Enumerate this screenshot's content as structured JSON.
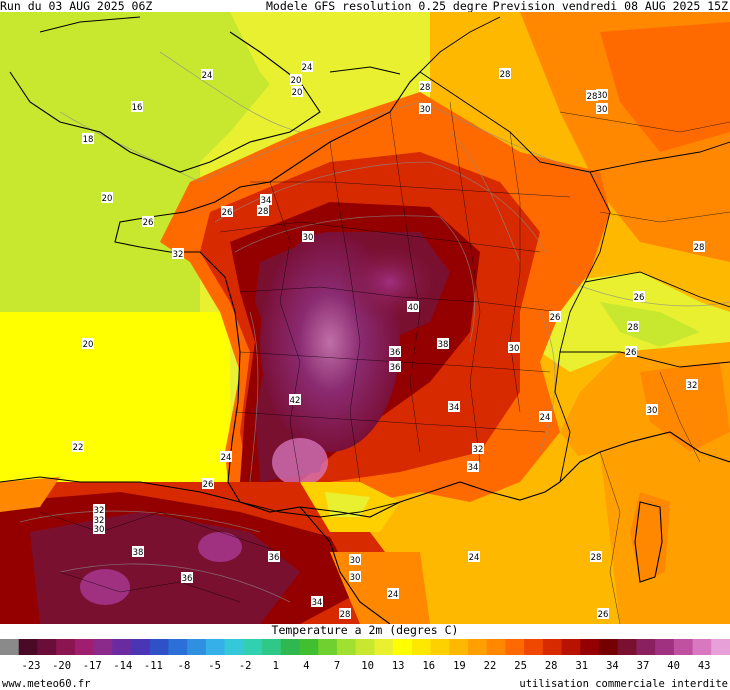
{
  "header": {
    "run": "Run du 03 AUG 2025 06Z",
    "model": "Modele GFS resolution 0.25 degre",
    "forecast": "Prevision vendredi 08 AUG 2025 15Z"
  },
  "legend": {
    "title": "Temperature a 2m (degres C)",
    "ticks": [
      "-23",
      "-20",
      "-17",
      "-14",
      "-11",
      "-8",
      "-5",
      "-2",
      "1",
      "4",
      "7",
      "10",
      "13",
      "16",
      "19",
      "22",
      "25",
      "28",
      "31",
      "34",
      "37",
      "40",
      "43"
    ],
    "colors": [
      "#8a8a8a",
      "#4a0a26",
      "#6a0d3a",
      "#8a1550",
      "#a01e70",
      "#8c2a8c",
      "#6a2aa0",
      "#4a35b5",
      "#3050c8",
      "#2a70d8",
      "#3090e0",
      "#35b0e8",
      "#35c8d8",
      "#30d0b0",
      "#30c888",
      "#30b850",
      "#40c030",
      "#70d030",
      "#a0e030",
      "#c8e830",
      "#e8f030",
      "#ffff00",
      "#ffe800",
      "#ffd000",
      "#ffb800",
      "#ffa000",
      "#ff8800",
      "#ff6a00",
      "#f04800",
      "#d82a00",
      "#b81200",
      "#940000",
      "#740000",
      "#7a1030",
      "#8a2060",
      "#a03080",
      "#c050a0",
      "#d878c0",
      "#e8a0d8"
    ]
  },
  "map": {
    "temperature_labels": [
      "24",
      "24",
      "20",
      "20",
      "16",
      "18",
      "20",
      "26",
      "26",
      "28",
      "28",
      "28",
      "30",
      "30",
      "30",
      "30",
      "32",
      "34",
      "36",
      "36",
      "42",
      "38",
      "40",
      "32",
      "34",
      "34",
      "30",
      "30",
      "24",
      "28",
      "24",
      "28",
      "34",
      "36",
      "36",
      "38",
      "32",
      "30",
      "32",
      "20",
      "22",
      "24",
      "26",
      "28",
      "30",
      "26",
      "26",
      "26",
      "28",
      "32",
      "30",
      "24",
      "28",
      "26",
      "24"
    ]
  },
  "footer": {
    "site": "www.meteo60.fr",
    "notice": "utilisation commerciale interdite"
  }
}
